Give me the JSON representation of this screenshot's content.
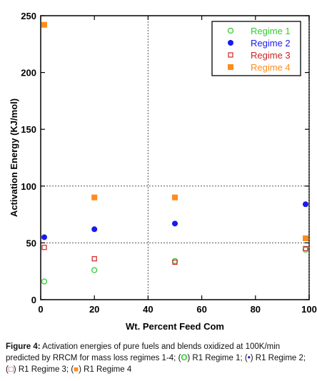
{
  "chart_data": {
    "type": "scatter",
    "xlabel": "Wt. Percent Feed Com",
    "ylabel": "Activation Energy (KJ/mol)",
    "xlim": [
      0,
      100
    ],
    "ylim": [
      0,
      250
    ],
    "xticks": [
      0,
      20,
      40,
      60,
      80,
      100
    ],
    "yticks": [
      0,
      50,
      100,
      150,
      200,
      250
    ],
    "grid": "dotted at x=40, x=100 and y=50, y=100",
    "legend_position": "top-right",
    "series": [
      {
        "name": "Regime 1",
        "color": "#33cc33",
        "marker": "open-circle",
        "x": [
          0,
          20,
          50,
          100
        ],
        "y": [
          16,
          26,
          34,
          44
        ]
      },
      {
        "name": "Regime 2",
        "color": "#1a1aee",
        "marker": "filled-circle",
        "x": [
          0,
          20,
          50,
          100
        ],
        "y": [
          55,
          62,
          67,
          84
        ]
      },
      {
        "name": "Regime 3",
        "color": "#cc2222",
        "marker": "open-square",
        "x": [
          0,
          20,
          50,
          100
        ],
        "y": [
          46,
          36,
          33,
          45
        ]
      },
      {
        "name": "Regime 4",
        "color": "#ff8c1a",
        "marker": "filled-square",
        "x": [
          0,
          20,
          50,
          100
        ],
        "y": [
          242,
          90,
          90,
          54
        ]
      }
    ]
  },
  "caption": {
    "label": "Figure 4:",
    "text_1": " Activation energies of pure fuels and blends oxidized at 100K/min predicted by RRCM for mass loss regimes 1-4; (",
    "sym_1": "O",
    "text_2": ") R1 Regime 1; (",
    "sym_2": "•",
    "text_3": ") R1 Regime 2; (",
    "sym_3": "□",
    "text_4": ") R1 Regime 3; (",
    "sym_4": "■",
    "text_5": ") R1 Regime 4"
  }
}
